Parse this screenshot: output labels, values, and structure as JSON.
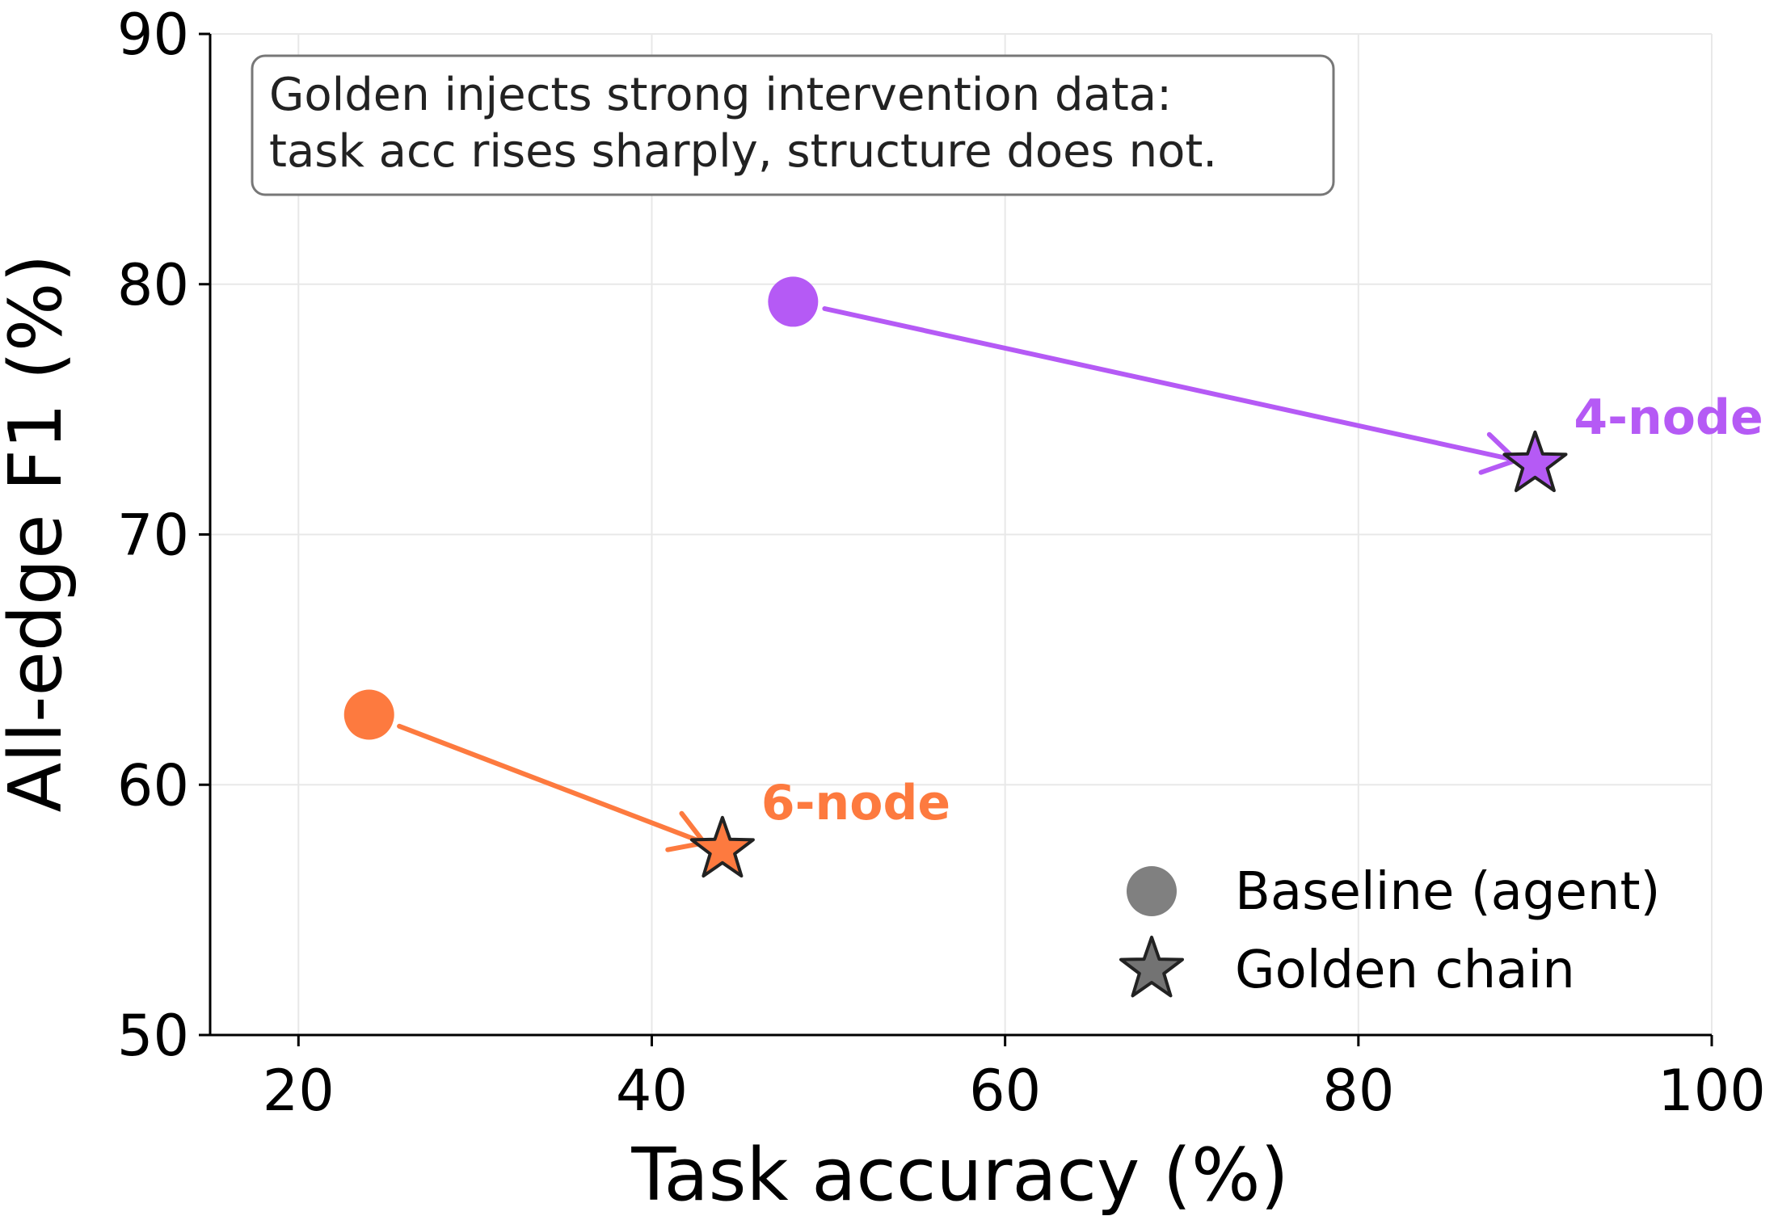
{
  "chart_data": {
    "type": "scatter",
    "xlabel": "Task accuracy (%)",
    "ylabel": "All-edge F1 (%)",
    "xlim": [
      15,
      100
    ],
    "ylim": [
      50,
      90
    ],
    "xticks": [
      20,
      40,
      60,
      80,
      100
    ],
    "yticks": [
      50,
      60,
      70,
      80,
      90
    ],
    "grid": true,
    "annotation": {
      "lines": [
        "Golden injects strong intervention data:",
        "task acc rises sharply, structure does not."
      ],
      "placement": "top-left"
    },
    "legend": {
      "placement": "bottom-right",
      "entries": [
        {
          "label": "Baseline (agent)",
          "marker": "circle",
          "color": "#808080"
        },
        {
          "label": "Golden chain",
          "marker": "star",
          "color": "#737373"
        }
      ]
    },
    "series": [
      {
        "name": "4-node",
        "color": "#b55af5",
        "baseline": {
          "x": 48,
          "y": 79.3
        },
        "golden": {
          "x": 90,
          "y": 72.8
        }
      },
      {
        "name": "6-node",
        "color": "#fd7a3f",
        "baseline": {
          "x": 24,
          "y": 62.8
        },
        "golden": {
          "x": 44,
          "y": 57.4
        }
      }
    ]
  }
}
